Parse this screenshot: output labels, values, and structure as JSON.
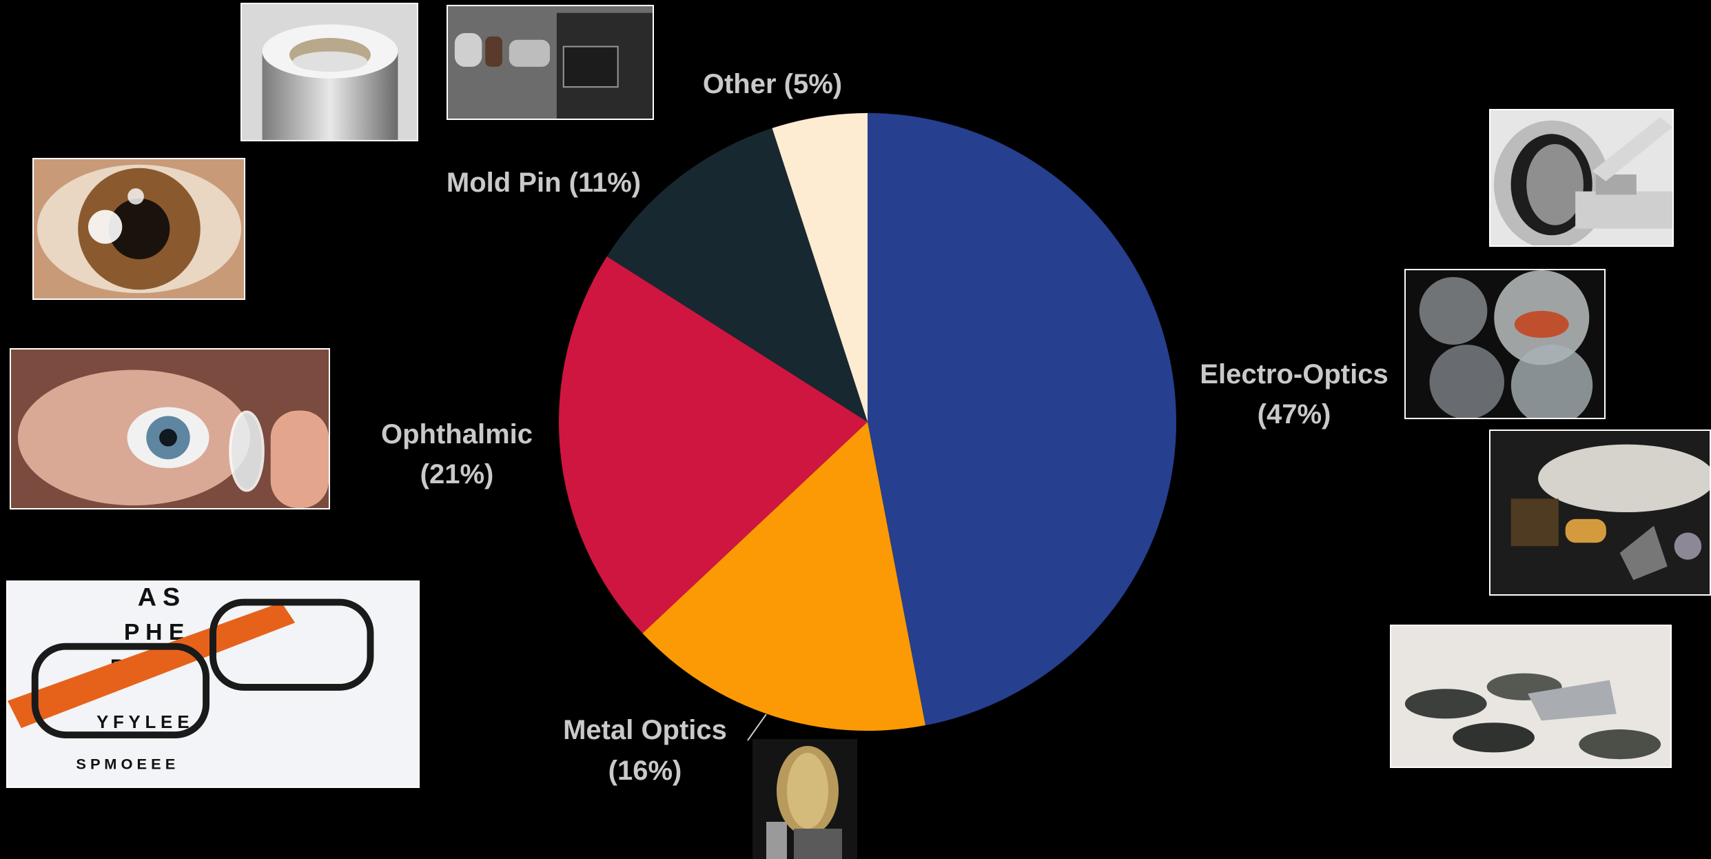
{
  "chart_data": {
    "type": "pie",
    "title": "",
    "start": "12 o'clock",
    "direction": "clockwise",
    "series": [
      {
        "categories": [
          "Electro-Optics",
          "Metal Optics",
          "Ophthalmic",
          "Mold Pin",
          "Other"
        ],
        "values": [
          47,
          16,
          21,
          11,
          5
        ],
        "colors": [
          "#263f8f",
          "#fb9a04",
          "#cf1640",
          "#172830",
          "#fdebd2"
        ]
      }
    ],
    "labels": [
      {
        "line1": "Electro-Optics",
        "line2": "(47%)"
      },
      {
        "line1": "Metal Optics",
        "line2": "(16%)"
      },
      {
        "line1": "Ophthalmic",
        "line2": "(21%)"
      },
      {
        "line1": "Mold Pin (11%)",
        "line2": ""
      },
      {
        "line1": "Other (5%)",
        "line2": ""
      }
    ],
    "legend": "none"
  },
  "photos": [
    {
      "name": "molded-lens-photo"
    },
    {
      "name": "camera-module-lens-photo"
    },
    {
      "name": "eye-closeup-photo"
    },
    {
      "name": "contact-lens-photo"
    },
    {
      "name": "eyeglasses-eye-chart-photo"
    },
    {
      "name": "diamond-turning-machine-photo"
    },
    {
      "name": "glass-lenses-photo"
    },
    {
      "name": "infrared-optics-photo"
    },
    {
      "name": "coated-lenses-photo"
    },
    {
      "name": "metal-mirror-photo"
    }
  ]
}
